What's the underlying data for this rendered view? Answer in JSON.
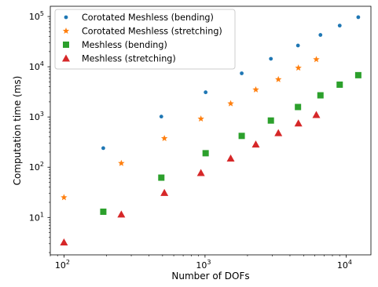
{
  "chart_data": {
    "type": "scatter",
    "title": "",
    "xlabel": "Number of DOFs",
    "ylabel": "Computation time (ms)",
    "x_scale": "log",
    "y_scale": "log",
    "xlim": [
      80,
      15000
    ],
    "ylim": [
      1.8,
      160000
    ],
    "grid": false,
    "legend_position": "top-left",
    "x_ticks": [
      {
        "value": 100,
        "base": "10",
        "exp": "2"
      },
      {
        "value": 1000,
        "base": "10",
        "exp": "3"
      },
      {
        "value": 10000,
        "base": "10",
        "exp": "4"
      }
    ],
    "y_ticks": [
      {
        "value": 10,
        "base": "10",
        "exp": "1"
      },
      {
        "value": 100,
        "base": "10",
        "exp": "2"
      },
      {
        "value": 1000,
        "base": "10",
        "exp": "3"
      },
      {
        "value": 10000,
        "base": "10",
        "exp": "4"
      },
      {
        "value": 100000,
        "base": "10",
        "exp": "5"
      }
    ],
    "series": [
      {
        "name": "Corotated Meshless (bending)",
        "marker": "circle",
        "color": "#1f77b4",
        "x": [
          190,
          490,
          1010,
          1820,
          2930,
          4560,
          6580,
          9010,
          12200
        ],
        "y": [
          240,
          1020,
          3100,
          7400,
          14400,
          26500,
          43000,
          66000,
          97000
        ]
      },
      {
        "name": "Corotated Meshless (stretching)",
        "marker": "star",
        "color": "#ff7f0e",
        "x": [
          100,
          255,
          515,
          935,
          1520,
          2290,
          3310,
          4590,
          6150
        ],
        "y": [
          25,
          120,
          375,
          920,
          1850,
          3500,
          5600,
          9500,
          14000
        ]
      },
      {
        "name": "Meshless (bending)",
        "marker": "square",
        "color": "#2ca02c",
        "x": [
          190,
          490,
          1010,
          1820,
          2930,
          4560,
          6580,
          9010,
          12200
        ],
        "y": [
          13,
          62,
          190,
          420,
          850,
          1580,
          2700,
          4400,
          6800
        ]
      },
      {
        "name": "Meshless (stretching)",
        "marker": "triangle",
        "color": "#d62728",
        "x": [
          100,
          255,
          515,
          935,
          1520,
          2290,
          3310,
          4590,
          6150
        ],
        "y": [
          3.2,
          11.5,
          31,
          77,
          150,
          285,
          480,
          750,
          1100
        ]
      }
    ]
  }
}
